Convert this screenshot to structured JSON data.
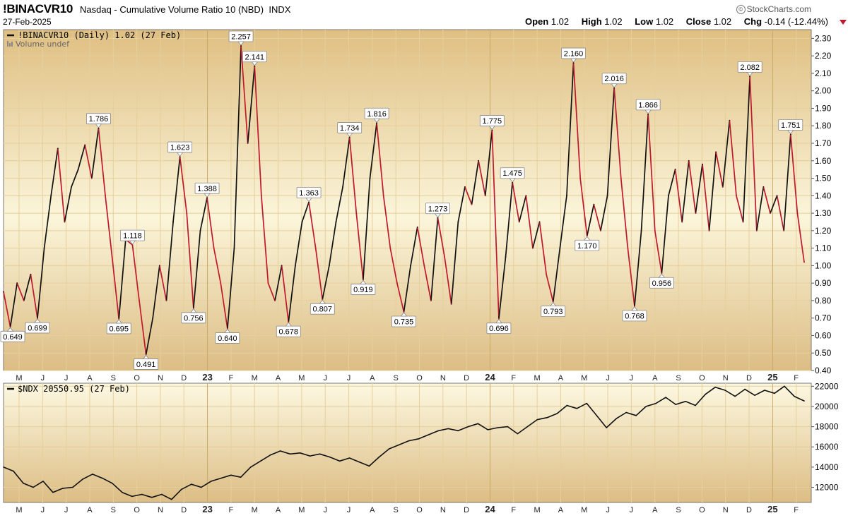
{
  "header": {
    "symbol": "!BINACVR10",
    "description": "Nasdaq - Cumulative Volume Ratio 10 (NBD)",
    "exchange": "INDX",
    "date": "27-Feb-2025",
    "brand": "StockCharts.com",
    "open_label": "Open",
    "open": "1.02",
    "high_label": "High",
    "high": "1.02",
    "low_label": "Low",
    "low": "1.02",
    "close_label": "Close",
    "close": "1.02",
    "chg_label": "Chg",
    "chg": "-0.14 (-12.44%)"
  },
  "colors": {
    "panel_top": "#fdf8e1",
    "panel_bottom": "#dfbf82",
    "grid": "#e6cf9a",
    "down": "#c0182d",
    "up": "#111111",
    "nasdaq_line": "#111111"
  },
  "chart_data": [
    {
      "type": "line",
      "title": "!BINACVR10 (Daily) 1.02 (27 Feb)",
      "volume_label": "Volume undef",
      "ylim": [
        0.4,
        2.35
      ],
      "y_ticks": [
        "2.30",
        "2.20",
        "2.10",
        "2.00",
        "1.90",
        "1.80",
        "1.70",
        "1.60",
        "1.50",
        "1.40",
        "1.30",
        "1.20",
        "1.10",
        "1.00",
        "0.90",
        "0.80",
        "0.70",
        "0.60",
        "0.50",
        "0.40"
      ],
      "x_ticks": [
        "M",
        "J",
        "J",
        "A",
        "S",
        "O",
        "N",
        "D",
        "23",
        "F",
        "M",
        "A",
        "M",
        "J",
        "J",
        "A",
        "S",
        "O",
        "N",
        "D",
        "24",
        "F",
        "M",
        "A",
        "M",
        "J",
        "J",
        "A",
        "S",
        "O",
        "N",
        "D",
        "25",
        "F"
      ],
      "year_ticks": [
        "23",
        "24",
        "25"
      ],
      "series": [
        {
          "values": [
            0.85,
            0.649,
            0.9,
            0.8,
            0.95,
            0.699,
            1.1,
            1.4,
            1.67,
            1.25,
            1.45,
            1.55,
            1.69,
            1.5,
            1.786,
            1.4,
            1.05,
            0.695,
            1.15,
            1.118,
            0.8,
            0.491,
            0.7,
            1.0,
            0.8,
            1.25,
            1.623,
            1.3,
            0.756,
            1.2,
            1.388,
            1.1,
            0.9,
            0.64,
            1.1,
            2.257,
            1.7,
            2.141,
            1.4,
            0.9,
            0.8,
            1.0,
            0.678,
            1.0,
            1.25,
            1.363,
            1.1,
            0.807,
            1.0,
            1.25,
            1.45,
            1.734,
            1.3,
            0.919,
            1.5,
            1.816,
            1.4,
            1.1,
            0.9,
            0.735,
            1.0,
            1.22,
            1.0,
            0.8,
            1.273,
            1.05,
            0.78,
            1.25,
            1.45,
            1.35,
            1.6,
            1.4,
            1.775,
            0.696,
            1.05,
            1.475,
            1.25,
            1.4,
            1.1,
            1.25,
            0.95,
            0.793,
            1.1,
            1.4,
            2.16,
            1.5,
            1.17,
            1.35,
            1.2,
            1.4,
            2.016,
            1.5,
            1.1,
            0.768,
            1.2,
            1.866,
            1.2,
            0.956,
            1.4,
            1.55,
            1.25,
            1.6,
            1.3,
            1.58,
            1.2,
            1.65,
            1.45,
            1.83,
            1.4,
            1.25,
            2.082,
            1.2,
            1.45,
            1.3,
            1.4,
            1.2,
            1.751,
            1.3,
            1.02
          ]
        }
      ],
      "peak_labels": [
        {
          "i": 1,
          "t": "0.649",
          "pos": "below"
        },
        {
          "i": 5,
          "t": "0.699",
          "pos": "below"
        },
        {
          "i": 14,
          "t": "1.786",
          "pos": "above"
        },
        {
          "i": 17,
          "t": "0.695",
          "pos": "below"
        },
        {
          "i": 19,
          "t": "1.118",
          "pos": "above"
        },
        {
          "i": 21,
          "t": "0.491",
          "pos": "below"
        },
        {
          "i": 26,
          "t": "1.623",
          "pos": "above"
        },
        {
          "i": 28,
          "t": "0.756",
          "pos": "below"
        },
        {
          "i": 30,
          "t": "1.388",
          "pos": "above"
        },
        {
          "i": 33,
          "t": "0.640",
          "pos": "below"
        },
        {
          "i": 35,
          "t": "2.257",
          "pos": "above"
        },
        {
          "i": 37,
          "t": "2.141",
          "pos": "above"
        },
        {
          "i": 42,
          "t": "0.678",
          "pos": "below"
        },
        {
          "i": 45,
          "t": "1.363",
          "pos": "above"
        },
        {
          "i": 47,
          "t": "0.807",
          "pos": "below"
        },
        {
          "i": 51,
          "t": "1.734",
          "pos": "above"
        },
        {
          "i": 53,
          "t": "0.919",
          "pos": "below"
        },
        {
          "i": 55,
          "t": "1.816",
          "pos": "above"
        },
        {
          "i": 59,
          "t": "0.735",
          "pos": "below"
        },
        {
          "i": 64,
          "t": "1.273",
          "pos": "above"
        },
        {
          "i": 72,
          "t": "1.775",
          "pos": "above"
        },
        {
          "i": 73,
          "t": "0.696",
          "pos": "below"
        },
        {
          "i": 75,
          "t": "1.475",
          "pos": "above"
        },
        {
          "i": 81,
          "t": "0.793",
          "pos": "below"
        },
        {
          "i": 84,
          "t": "2.160",
          "pos": "above"
        },
        {
          "i": 86,
          "t": "1.170",
          "pos": "below"
        },
        {
          "i": 90,
          "t": "2.016",
          "pos": "above"
        },
        {
          "i": 93,
          "t": "0.768",
          "pos": "below"
        },
        {
          "i": 95,
          "t": "1.866",
          "pos": "above"
        },
        {
          "i": 97,
          "t": "0.956",
          "pos": "below"
        },
        {
          "i": 110,
          "t": "2.082",
          "pos": "above"
        },
        {
          "i": 116,
          "t": "1.751",
          "pos": "above"
        }
      ]
    },
    {
      "type": "line",
      "title": "$NDX 20550.95 (27 Feb)",
      "ylim": [
        10500,
        22300
      ],
      "y_ticks": [
        "22000",
        "20000",
        "18000",
        "16000",
        "14000",
        "12000"
      ],
      "x_ticks": [
        "M",
        "J",
        "J",
        "A",
        "S",
        "O",
        "N",
        "D",
        "23",
        "F",
        "M",
        "A",
        "M",
        "J",
        "J",
        "A",
        "S",
        "O",
        "N",
        "D",
        "24",
        "F",
        "M",
        "A",
        "M",
        "J",
        "J",
        "A",
        "S",
        "O",
        "N",
        "D",
        "25",
        "F"
      ],
      "series": [
        {
          "values": [
            14000,
            13600,
            12400,
            12000,
            12600,
            11500,
            11900,
            12000,
            12800,
            13300,
            12900,
            12400,
            11500,
            11100,
            11300,
            11000,
            11300,
            10800,
            11800,
            12300,
            12000,
            12600,
            12900,
            13200,
            13000,
            14000,
            14600,
            15200,
            15600,
            15300,
            15400,
            15100,
            15300,
            15000,
            14600,
            14900,
            14500,
            14100,
            15000,
            15800,
            16200,
            16600,
            16800,
            17200,
            17600,
            17800,
            17600,
            18000,
            18300,
            17700,
            17900,
            18000,
            17300,
            18000,
            18700,
            18900,
            19300,
            20100,
            19800,
            20300,
            19100,
            17900,
            18800,
            19400,
            19100,
            20000,
            20300,
            20900,
            20200,
            20500,
            20100,
            21200,
            21900,
            21600,
            21000,
            21700,
            21100,
            21600,
            21300,
            22000,
            21000,
            20550
          ]
        }
      ]
    }
  ]
}
